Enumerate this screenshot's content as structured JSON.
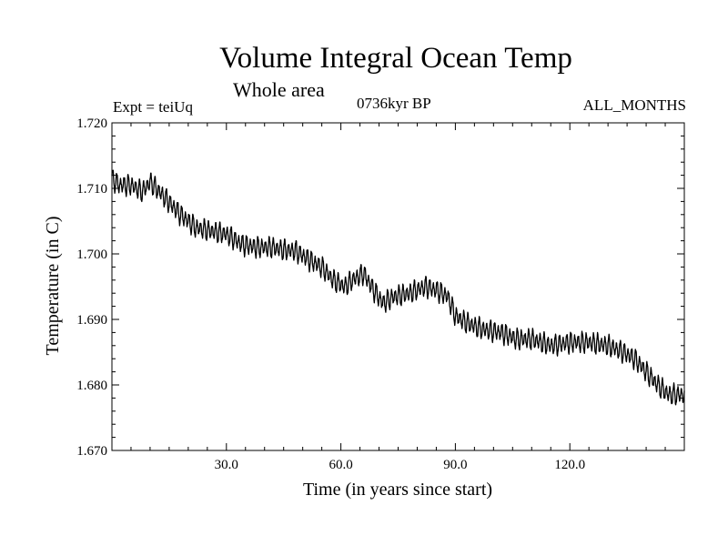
{
  "header": {
    "title": "Volume Integral Ocean Temp",
    "subtitle": "Whole area",
    "experiment": "Expt = teiUq",
    "period": "0736kyr BP",
    "months": "ALL_MONTHS"
  },
  "chart_data": {
    "type": "line",
    "title": "Volume Integral Ocean Temp",
    "subtitle": "Whole area",
    "xlabel": "Time (in years since start)",
    "ylabel": "Temperature (in C)",
    "xlim": [
      0,
      150
    ],
    "ylim": [
      1.67,
      1.72
    ],
    "xticks": [
      30,
      60,
      90,
      120
    ],
    "xtick_labels": [
      "30.0",
      "60.0",
      "90.0",
      "120.0"
    ],
    "yticks": [
      1.67,
      1.68,
      1.69,
      1.7,
      1.71,
      1.72
    ],
    "ytick_labels": [
      "1.670",
      "1.680",
      "1.690",
      "1.700",
      "1.710",
      "1.720"
    ],
    "grid": false,
    "seasonal_cycle_amplitude": 0.0012,
    "series": [
      {
        "name": "Volume Integral Ocean Temp",
        "color": "#000000",
        "trend_x": [
          0,
          2,
          5,
          8,
          10,
          14,
          18,
          22,
          26,
          30,
          34,
          38,
          42,
          46,
          48,
          52,
          55,
          58,
          61,
          63,
          66,
          68,
          71,
          74,
          78,
          82,
          85,
          88,
          90,
          93,
          97,
          102,
          106,
          110,
          115,
          120,
          125,
          130,
          134,
          137,
          140,
          143,
          146,
          150
        ],
        "trend_y": [
          1.7115,
          1.7105,
          1.7105,
          1.7095,
          1.711,
          1.7085,
          1.706,
          1.704,
          1.7035,
          1.703,
          1.7015,
          1.701,
          1.701,
          1.7005,
          1.7005,
          1.699,
          1.698,
          1.696,
          1.695,
          1.696,
          1.697,
          1.695,
          1.6925,
          1.6935,
          1.694,
          1.695,
          1.6945,
          1.6935,
          1.6905,
          1.6895,
          1.6885,
          1.688,
          1.687,
          1.687,
          1.686,
          1.6865,
          1.6865,
          1.686,
          1.685,
          1.684,
          1.682,
          1.68,
          1.6785,
          1.6785
        ]
      }
    ]
  }
}
